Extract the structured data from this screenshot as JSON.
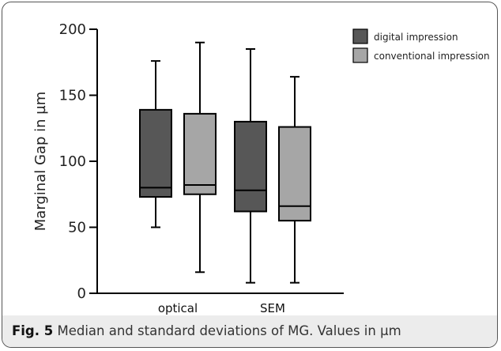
{
  "chart_data": {
    "type": "box",
    "ylabel": "Marginal Gap in µm",
    "xlabel": "",
    "ylim": [
      0,
      200
    ],
    "yticks": [
      0,
      50,
      100,
      150,
      200
    ],
    "categories": [
      "optical",
      "SEM"
    ],
    "series": [
      {
        "name": "digital impression",
        "color": "#575757",
        "boxes": [
          {
            "min": 50,
            "q1": 73,
            "median": 80,
            "q3": 139,
            "max": 176
          },
          {
            "min": 8,
            "q1": 62,
            "median": 78,
            "q3": 130,
            "max": 185
          }
        ]
      },
      {
        "name": "conventional impression",
        "color": "#a6a6a6",
        "boxes": [
          {
            "min": 16,
            "q1": 75,
            "median": 82,
            "q3": 136,
            "max": 190
          },
          {
            "min": 8,
            "q1": 55,
            "median": 66,
            "q3": 126,
            "max": 164
          }
        ]
      }
    ],
    "grid": false,
    "legend": "top-right"
  },
  "caption": {
    "label": "Fig. 5",
    "text": " Median and standard deviations of MG. Values in µm"
  }
}
